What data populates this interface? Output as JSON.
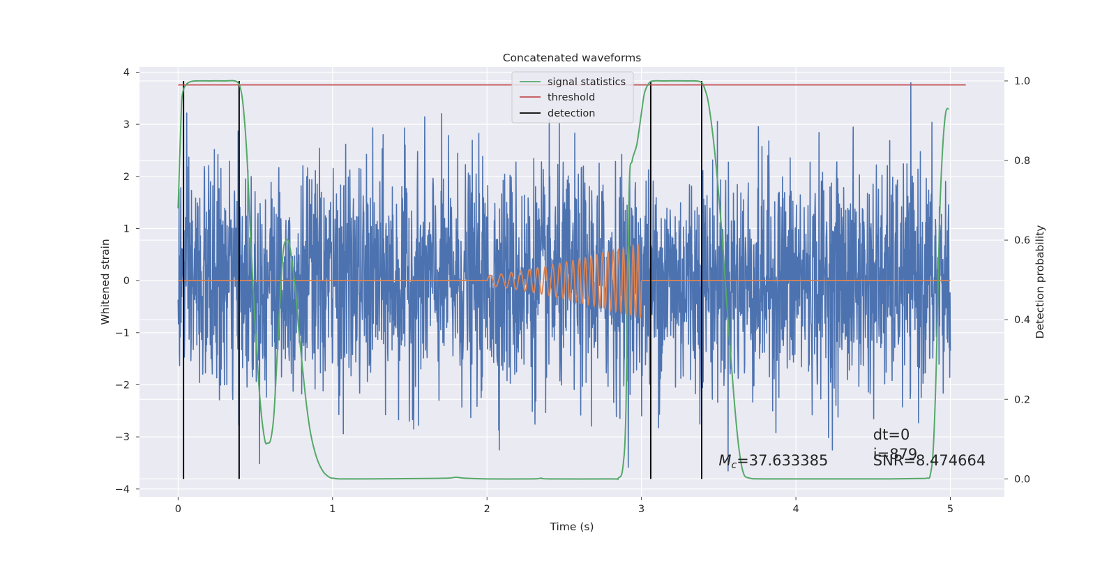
{
  "chart_data": {
    "type": "line",
    "title": "Concatenated waveforms",
    "xlabel": "Time (s)",
    "ylabel": "Whitened strain",
    "ylabel_right": "Detection probability",
    "xlim": [
      -0.25,
      5.35
    ],
    "ylim": [
      -4.15,
      4.1
    ],
    "ylim_right": [
      -0.045,
      1.035
    ],
    "x_ticks": [
      0,
      1,
      2,
      3,
      4,
      5
    ],
    "y_ticks": [
      -4,
      -3,
      -2,
      -1,
      0,
      1,
      2,
      3,
      4
    ],
    "y_ticks_right": [
      0.0,
      0.2,
      0.4,
      0.6,
      0.8,
      1.0
    ],
    "grid": true,
    "legend_position": "upper-center",
    "colors": {
      "strain": "#4c72b0",
      "injected_signal": "#dd8452",
      "signal_statistics": "#55a868",
      "threshold": "#c44e52",
      "detection": "#000000",
      "axes_face": "#eaeaf2",
      "grid": "#ffffff"
    },
    "series": [
      {
        "name": "signal statistics",
        "axis": "right",
        "x": [
          0.0,
          0.02,
          0.03,
          0.05,
          0.08,
          0.12,
          0.2,
          0.3,
          0.38,
          0.41,
          0.43,
          0.45,
          0.47,
          0.5,
          0.53,
          0.56,
          0.58,
          0.6,
          0.62,
          0.64,
          0.66,
          0.68,
          0.7,
          0.72,
          0.74,
          0.76,
          0.78,
          0.8,
          0.83,
          0.86,
          0.9,
          0.94,
          0.98,
          1.0,
          1.05,
          1.2,
          1.6,
          1.75,
          1.8,
          1.85,
          2.0,
          2.3,
          2.35,
          2.4,
          2.8,
          2.85,
          2.88,
          2.9,
          2.92,
          2.94,
          2.97,
          3.0,
          3.02,
          3.05,
          3.08,
          3.15,
          3.3,
          3.38,
          3.41,
          3.44,
          3.48,
          3.52,
          3.56,
          3.6,
          3.63,
          3.66,
          3.7,
          3.8,
          4.2,
          4.6,
          4.8,
          4.85,
          4.87,
          4.89,
          4.91,
          4.93,
          4.95,
          4.97,
          4.99
        ],
        "y": [
          0.68,
          0.92,
          0.97,
          0.99,
          0.998,
          1.0,
          1.0,
          1.0,
          0.998,
          0.97,
          0.9,
          0.78,
          0.6,
          0.38,
          0.2,
          0.1,
          0.09,
          0.1,
          0.16,
          0.3,
          0.45,
          0.57,
          0.6,
          0.59,
          0.54,
          0.47,
          0.38,
          0.3,
          0.19,
          0.11,
          0.05,
          0.018,
          0.004,
          0.002,
          0.0,
          0.0,
          0.001,
          0.002,
          0.004,
          0.002,
          0.0,
          0.0,
          0.002,
          0.0,
          0.0,
          0.002,
          0.03,
          0.18,
          0.72,
          0.8,
          0.84,
          0.92,
          0.97,
          0.995,
          1.0,
          1.0,
          1.0,
          0.998,
          0.98,
          0.93,
          0.8,
          0.62,
          0.4,
          0.2,
          0.08,
          0.015,
          0.002,
          0.0,
          0.0,
          0.0,
          0.001,
          0.002,
          0.01,
          0.08,
          0.3,
          0.65,
          0.83,
          0.92,
          0.93
        ]
      },
      {
        "name": "threshold",
        "axis": "right",
        "x": [
          0.0,
          5.1
        ],
        "y": [
          0.99,
          0.99
        ]
      },
      {
        "name": "detection",
        "axis": "right",
        "x": [
          0.035,
          0.395,
          3.06,
          3.39
        ],
        "y_range": [
          0.0,
          1.0
        ]
      }
    ],
    "strain": {
      "x_range": [
        0.0,
        5.0
      ],
      "typical_amplitude": 1.5,
      "max_abs": 3.8
    },
    "injected_signal": {
      "x_range": [
        2.0,
        3.0
      ],
      "amplitude_range": [
        0.1,
        0.72
      ],
      "cycles": 23
    },
    "annotations": [
      {
        "text_math": "M",
        "text_sub": "c",
        "text_rest": "=37.633385",
        "x": 3.5,
        "y": -3.55
      },
      {
        "text": "dt=0",
        "x": 4.5,
        "y": -3.05
      },
      {
        "text": "i=879",
        "x": 4.5,
        "y": -3.43
      },
      {
        "text": "SNR=8.474664",
        "x": 4.5,
        "y": -3.55
      }
    ]
  }
}
